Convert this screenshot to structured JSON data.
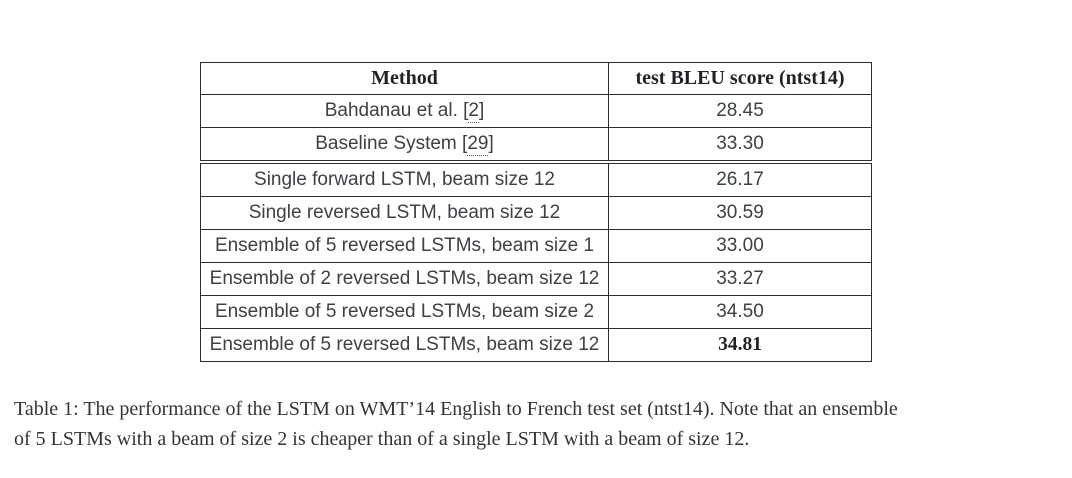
{
  "colors": {
    "background": "#ffffff",
    "table_border": "#2d2d2d",
    "body_text": "#3d4145",
    "heading_text": "#1f2124",
    "caption_text": "#343434"
  },
  "table": {
    "headers": [
      "Method",
      "test BLEU score (ntst14)"
    ],
    "sections": [
      {
        "rows": [
          {
            "method_parts": [
              {
                "text": "Bahdanau et al. ["
              },
              {
                "text": "2",
                "cite": true
              },
              {
                "text": "]"
              }
            ],
            "score": "28.45",
            "bold": false
          },
          {
            "method_parts": [
              {
                "text": "Baseline System ["
              },
              {
                "text": "29",
                "cite": true
              },
              {
                "text": "]"
              }
            ],
            "score": "33.30",
            "bold": false
          }
        ]
      },
      {
        "rows": [
          {
            "method_parts": [
              {
                "text": "Single forward LSTM, beam size 12"
              }
            ],
            "score": "26.17",
            "bold": false
          },
          {
            "method_parts": [
              {
                "text": "Single reversed LSTM, beam size 12"
              }
            ],
            "score": "30.59",
            "bold": false
          },
          {
            "method_parts": [
              {
                "text": "Ensemble of 5 reversed LSTMs, beam size 1"
              }
            ],
            "score": "33.00",
            "bold": false
          },
          {
            "method_parts": [
              {
                "text": "Ensemble of 2 reversed LSTMs, beam size 12"
              }
            ],
            "score": "33.27",
            "bold": false
          },
          {
            "method_parts": [
              {
                "text": "Ensemble of 5 reversed LSTMs, beam size 2"
              }
            ],
            "score": "34.50",
            "bold": false
          },
          {
            "method_parts": [
              {
                "text": "Ensemble of 5 reversed LSTMs, beam size 12"
              }
            ],
            "score": "34.81",
            "bold": true
          }
        ]
      }
    ]
  },
  "caption": {
    "line1": "Table 1: The performance of the LSTM on WMT’14 English to French test set (ntst14). Note that an ensemble",
    "line2": "of 5 LSTMs with a beam of size 2 is cheaper than of a single LSTM with a beam of size 12."
  }
}
